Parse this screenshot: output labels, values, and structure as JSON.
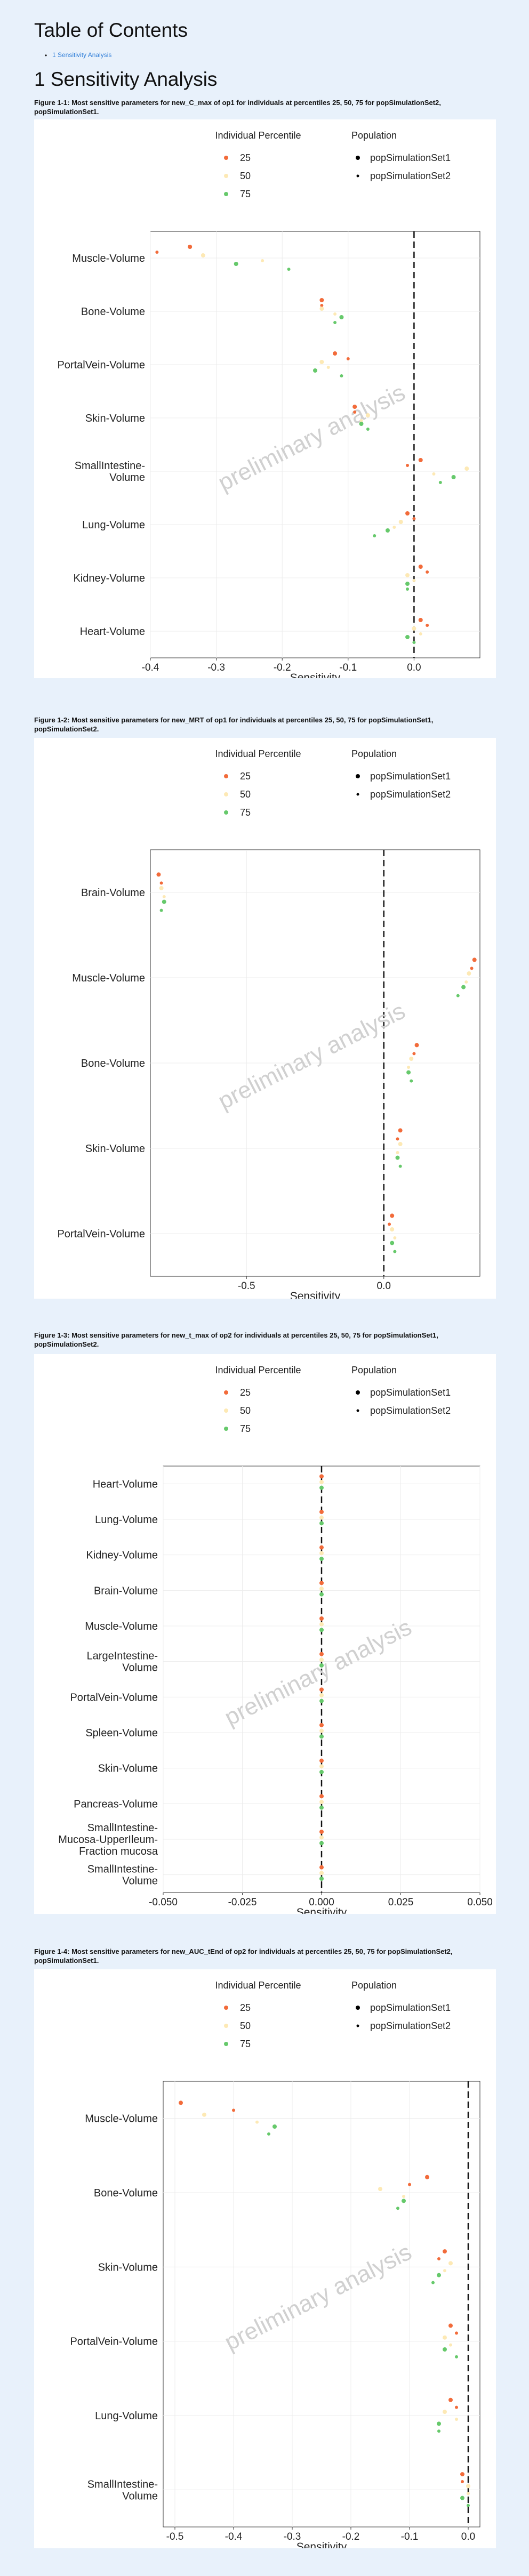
{
  "toc": {
    "title": "Table of Contents",
    "items": [
      "1 Sensitivity Analysis"
    ]
  },
  "section_title": "1 Sensitivity Analysis",
  "figures": [
    {
      "caption": "Figure 1-1: Most sensitive parameters for new_C_max of op1 for individuals at percentiles 25, 50, 75 for popSimulationSet2, popSimulationSet1."
    },
    {
      "caption": "Figure 1-2: Most sensitive parameters for new_MRT of op1 for individuals at percentiles 25, 50, 75 for popSimulationSet1, popSimulationSet2."
    },
    {
      "caption": "Figure 1-3: Most sensitive parameters for new_t_max of op2 for individuals at percentiles 25, 50, 75 for popSimulationSet1, popSimulationSet2."
    },
    {
      "caption": "Figure 1-4: Most sensitive parameters for new_AUC_tEnd of op2 for individuals at percentiles 25, 50, 75 for popSimulationSet2, popSimulationSet1."
    }
  ],
  "legend": {
    "percentile_title": "Individual Percentile",
    "percentiles": [
      "25",
      "50",
      "75"
    ],
    "population_title": "Population",
    "populations": [
      "popSimulationSet1",
      "popSimulationSet2"
    ]
  },
  "colors": {
    "p25": "#f26b3a",
    "p50": "#fde9b5",
    "p75": "#66c96b",
    "link": "#2f7ed8"
  },
  "watermark": "preliminary analysis",
  "chart_data": [
    {
      "type": "scatter",
      "xlabel": "Sensitivity",
      "xlim": [
        -0.4,
        0.1
      ],
      "xticks": [
        -0.4,
        -0.3,
        -0.2,
        -0.1,
        0.0
      ],
      "xticklabels": [
        "-0.4",
        "-0.3",
        "-0.2",
        "-0.1",
        "0.0"
      ],
      "categories": [
        "Muscle-Volume",
        "Bone-Volume",
        "PortalVein-Volume",
        "Skin-Volume",
        "SmallIntestine-\nVolume",
        "Lung-Volume",
        "Kidney-Volume",
        "Heart-Volume"
      ],
      "points": [
        [
          "Muscle-Volume",
          1,
          -0.34,
          1
        ],
        [
          "Muscle-Volume",
          1,
          -0.39,
          2
        ],
        [
          "Muscle-Volume",
          2,
          -0.32,
          1
        ],
        [
          "Muscle-Volume",
          2,
          -0.23,
          2
        ],
        [
          "Muscle-Volume",
          3,
          -0.27,
          1
        ],
        [
          "Muscle-Volume",
          3,
          -0.19,
          2
        ],
        [
          "Bone-Volume",
          1,
          -0.14,
          1
        ],
        [
          "Bone-Volume",
          1,
          -0.14,
          2
        ],
        [
          "Bone-Volume",
          2,
          -0.14,
          1
        ],
        [
          "Bone-Volume",
          2,
          -0.12,
          2
        ],
        [
          "Bone-Volume",
          3,
          -0.11,
          1
        ],
        [
          "Bone-Volume",
          3,
          -0.12,
          2
        ],
        [
          "PortalVein-Volume",
          1,
          -0.12,
          1
        ],
        [
          "PortalVein-Volume",
          1,
          -0.1,
          2
        ],
        [
          "PortalVein-Volume",
          2,
          -0.14,
          1
        ],
        [
          "PortalVein-Volume",
          2,
          -0.13,
          2
        ],
        [
          "PortalVein-Volume",
          3,
          -0.15,
          1
        ],
        [
          "PortalVein-Volume",
          3,
          -0.11,
          2
        ],
        [
          "Skin-Volume",
          1,
          -0.09,
          1
        ],
        [
          "Skin-Volume",
          1,
          -0.09,
          2
        ],
        [
          "Skin-Volume",
          2,
          -0.07,
          1
        ],
        [
          "Skin-Volume",
          2,
          -0.08,
          2
        ],
        [
          "Skin-Volume",
          3,
          -0.08,
          1
        ],
        [
          "Skin-Volume",
          3,
          -0.07,
          2
        ],
        [
          "SmallIntestine-\nVolume",
          1,
          0.01,
          1
        ],
        [
          "SmallIntestine-\nVolume",
          1,
          -0.01,
          2
        ],
        [
          "SmallIntestine-\nVolume",
          2,
          0.08,
          1
        ],
        [
          "SmallIntestine-\nVolume",
          2,
          0.03,
          2
        ],
        [
          "SmallIntestine-\nVolume",
          3,
          0.06,
          1
        ],
        [
          "SmallIntestine-\nVolume",
          3,
          0.04,
          2
        ],
        [
          "Lung-Volume",
          1,
          -0.01,
          1
        ],
        [
          "Lung-Volume",
          1,
          0.0,
          2
        ],
        [
          "Lung-Volume",
          2,
          -0.02,
          1
        ],
        [
          "Lung-Volume",
          2,
          -0.03,
          2
        ],
        [
          "Lung-Volume",
          3,
          -0.04,
          1
        ],
        [
          "Lung-Volume",
          3,
          -0.06,
          2
        ],
        [
          "Kidney-Volume",
          1,
          0.01,
          1
        ],
        [
          "Kidney-Volume",
          1,
          0.02,
          2
        ],
        [
          "Kidney-Volume",
          2,
          -0.01,
          1
        ],
        [
          "Kidney-Volume",
          2,
          0.0,
          2
        ],
        [
          "Kidney-Volume",
          3,
          -0.01,
          1
        ],
        [
          "Kidney-Volume",
          3,
          -0.01,
          2
        ],
        [
          "Heart-Volume",
          1,
          0.01,
          1
        ],
        [
          "Heart-Volume",
          1,
          0.02,
          2
        ],
        [
          "Heart-Volume",
          2,
          0.0,
          1
        ],
        [
          "Heart-Volume",
          2,
          0.01,
          2
        ],
        [
          "Heart-Volume",
          3,
          -0.01,
          1
        ],
        [
          "Heart-Volume",
          3,
          0.0,
          2
        ]
      ]
    },
    {
      "type": "scatter",
      "xlabel": "Sensitivity",
      "xlim": [
        -0.85,
        0.35
      ],
      "xticks": [
        -0.5,
        0.0
      ],
      "xticklabels": [
        "-0.5",
        "0.0"
      ],
      "categories": [
        "Brain-Volume",
        "Muscle-Volume",
        "Bone-Volume",
        "Skin-Volume",
        "PortalVein-Volume"
      ],
      "points": [
        [
          "Brain-Volume",
          1,
          -0.82,
          1
        ],
        [
          "Brain-Volume",
          1,
          -0.81,
          2
        ],
        [
          "Brain-Volume",
          2,
          -0.81,
          1
        ],
        [
          "Brain-Volume",
          2,
          -0.8,
          2
        ],
        [
          "Brain-Volume",
          3,
          -0.8,
          1
        ],
        [
          "Brain-Volume",
          3,
          -0.81,
          2
        ],
        [
          "Muscle-Volume",
          1,
          0.33,
          1
        ],
        [
          "Muscle-Volume",
          1,
          0.32,
          2
        ],
        [
          "Muscle-Volume",
          2,
          0.31,
          1
        ],
        [
          "Muscle-Volume",
          2,
          0.3,
          2
        ],
        [
          "Muscle-Volume",
          3,
          0.29,
          1
        ],
        [
          "Muscle-Volume",
          3,
          0.27,
          2
        ],
        [
          "Bone-Volume",
          1,
          0.12,
          1
        ],
        [
          "Bone-Volume",
          1,
          0.11,
          2
        ],
        [
          "Bone-Volume",
          2,
          0.1,
          1
        ],
        [
          "Bone-Volume",
          2,
          0.09,
          2
        ],
        [
          "Bone-Volume",
          3,
          0.09,
          1
        ],
        [
          "Bone-Volume",
          3,
          0.1,
          2
        ],
        [
          "Skin-Volume",
          1,
          0.06,
          1
        ],
        [
          "Skin-Volume",
          1,
          0.05,
          2
        ],
        [
          "Skin-Volume",
          2,
          0.06,
          1
        ],
        [
          "Skin-Volume",
          2,
          0.05,
          2
        ],
        [
          "Skin-Volume",
          3,
          0.05,
          1
        ],
        [
          "Skin-Volume",
          3,
          0.06,
          2
        ],
        [
          "PortalVein-Volume",
          1,
          0.03,
          1
        ],
        [
          "PortalVein-Volume",
          1,
          0.02,
          2
        ],
        [
          "PortalVein-Volume",
          2,
          0.03,
          1
        ],
        [
          "PortalVein-Volume",
          2,
          0.04,
          2
        ],
        [
          "PortalVein-Volume",
          3,
          0.03,
          1
        ],
        [
          "PortalVein-Volume",
          3,
          0.04,
          2
        ]
      ]
    },
    {
      "type": "scatter",
      "xlabel": "Sensitivity",
      "xlim": [
        -0.05,
        0.05
      ],
      "xticks": [
        -0.05,
        -0.025,
        0.0,
        0.025,
        0.05
      ],
      "xticklabels": [
        "-0.050",
        "-0.025",
        "0.000",
        "0.025",
        "0.050"
      ],
      "categories": [
        "Heart-Volume",
        "Lung-Volume",
        "Kidney-Volume",
        "Brain-Volume",
        "Muscle-Volume",
        "LargeIntestine-\nVolume",
        "PortalVein-Volume",
        "Spleen-Volume",
        "Skin-Volume",
        "Pancreas-Volume",
        "SmallIntestine-\nMucosa-UpperIleum-\nFraction mucosa",
        "SmallIntestine-\nVolume"
      ],
      "points": [
        [
          "Heart-Volume",
          1,
          0,
          1
        ],
        [
          "Heart-Volume",
          2,
          0,
          1
        ],
        [
          "Heart-Volume",
          3,
          0,
          1
        ],
        [
          "Lung-Volume",
          1,
          0,
          1
        ],
        [
          "Lung-Volume",
          2,
          0,
          1
        ],
        [
          "Lung-Volume",
          3,
          0,
          1
        ],
        [
          "Kidney-Volume",
          1,
          0,
          1
        ],
        [
          "Kidney-Volume",
          2,
          0,
          1
        ],
        [
          "Kidney-Volume",
          3,
          0,
          1
        ],
        [
          "Brain-Volume",
          1,
          0,
          1
        ],
        [
          "Brain-Volume",
          2,
          0,
          1
        ],
        [
          "Brain-Volume",
          3,
          0,
          1
        ],
        [
          "Muscle-Volume",
          1,
          0,
          1
        ],
        [
          "Muscle-Volume",
          2,
          0,
          1
        ],
        [
          "Muscle-Volume",
          3,
          0,
          1
        ],
        [
          "LargeIntestine-\nVolume",
          1,
          0,
          1
        ],
        [
          "LargeIntestine-\nVolume",
          2,
          0,
          1
        ],
        [
          "LargeIntestine-\nVolume",
          3,
          0,
          1
        ],
        [
          "PortalVein-Volume",
          1,
          0,
          1
        ],
        [
          "PortalVein-Volume",
          2,
          0,
          1
        ],
        [
          "PortalVein-Volume",
          3,
          0,
          1
        ],
        [
          "Spleen-Volume",
          1,
          0,
          1
        ],
        [
          "Spleen-Volume",
          2,
          0,
          1
        ],
        [
          "Spleen-Volume",
          3,
          0,
          1
        ],
        [
          "Skin-Volume",
          1,
          0,
          1
        ],
        [
          "Skin-Volume",
          2,
          0,
          1
        ],
        [
          "Skin-Volume",
          3,
          0,
          1
        ],
        [
          "Pancreas-Volume",
          1,
          0,
          1
        ],
        [
          "Pancreas-Volume",
          2,
          0,
          1
        ],
        [
          "Pancreas-Volume",
          3,
          0,
          1
        ],
        [
          "SmallIntestine-\nMucosa-UpperIleum-\nFraction mucosa",
          1,
          0,
          1
        ],
        [
          "SmallIntestine-\nMucosa-UpperIleum-\nFraction mucosa",
          2,
          0,
          1
        ],
        [
          "SmallIntestine-\nMucosa-UpperIleum-\nFraction mucosa",
          3,
          0,
          1
        ],
        [
          "SmallIntestine-\nVolume",
          1,
          0,
          1
        ],
        [
          "SmallIntestine-\nVolume",
          2,
          0,
          1
        ],
        [
          "SmallIntestine-\nVolume",
          3,
          0,
          1
        ]
      ]
    },
    {
      "type": "scatter",
      "xlabel": "Sensitivity",
      "xlim": [
        -0.52,
        0.02
      ],
      "xticks": [
        -0.5,
        -0.4,
        -0.3,
        -0.2,
        -0.1,
        0.0
      ],
      "xticklabels": [
        "-0.5",
        "-0.4",
        "-0.3",
        "-0.2",
        "-0.1",
        "0.0"
      ],
      "categories": [
        "Muscle-Volume",
        "Bone-Volume",
        "Skin-Volume",
        "PortalVein-Volume",
        "Lung-Volume",
        "SmallIntestine-\nVolume"
      ],
      "points": [
        [
          "Muscle-Volume",
          1,
          -0.49,
          1
        ],
        [
          "Muscle-Volume",
          1,
          -0.4,
          2
        ],
        [
          "Muscle-Volume",
          2,
          -0.45,
          1
        ],
        [
          "Muscle-Volume",
          2,
          -0.36,
          2
        ],
        [
          "Muscle-Volume",
          3,
          -0.33,
          1
        ],
        [
          "Muscle-Volume",
          3,
          -0.34,
          2
        ],
        [
          "Bone-Volume",
          1,
          -0.07,
          1
        ],
        [
          "Bone-Volume",
          1,
          -0.1,
          2
        ],
        [
          "Bone-Volume",
          2,
          -0.15,
          1
        ],
        [
          "Bone-Volume",
          2,
          -0.11,
          2
        ],
        [
          "Bone-Volume",
          3,
          -0.11,
          1
        ],
        [
          "Bone-Volume",
          3,
          -0.12,
          2
        ],
        [
          "Skin-Volume",
          1,
          -0.04,
          1
        ],
        [
          "Skin-Volume",
          1,
          -0.05,
          2
        ],
        [
          "Skin-Volume",
          2,
          -0.03,
          1
        ],
        [
          "Skin-Volume",
          2,
          -0.04,
          2
        ],
        [
          "Skin-Volume",
          3,
          -0.05,
          1
        ],
        [
          "Skin-Volume",
          3,
          -0.06,
          2
        ],
        [
          "PortalVein-Volume",
          1,
          -0.03,
          1
        ],
        [
          "PortalVein-Volume",
          1,
          -0.02,
          2
        ],
        [
          "PortalVein-Volume",
          2,
          -0.04,
          1
        ],
        [
          "PortalVein-Volume",
          2,
          -0.03,
          2
        ],
        [
          "PortalVein-Volume",
          3,
          -0.04,
          1
        ],
        [
          "PortalVein-Volume",
          3,
          -0.02,
          2
        ],
        [
          "Lung-Volume",
          1,
          -0.03,
          1
        ],
        [
          "Lung-Volume",
          1,
          -0.02,
          2
        ],
        [
          "Lung-Volume",
          2,
          -0.04,
          1
        ],
        [
          "Lung-Volume",
          2,
          -0.02,
          2
        ],
        [
          "Lung-Volume",
          3,
          -0.05,
          1
        ],
        [
          "Lung-Volume",
          3,
          -0.05,
          2
        ],
        [
          "SmallIntestine-\nVolume",
          1,
          -0.01,
          1
        ],
        [
          "SmallIntestine-\nVolume",
          1,
          -0.01,
          2
        ],
        [
          "SmallIntestine-\nVolume",
          2,
          0.0,
          1
        ],
        [
          "SmallIntestine-\nVolume",
          2,
          0.0,
          2
        ],
        [
          "SmallIntestine-\nVolume",
          3,
          -0.01,
          1
        ],
        [
          "SmallIntestine-\nVolume",
          3,
          0.0,
          2
        ]
      ]
    }
  ]
}
